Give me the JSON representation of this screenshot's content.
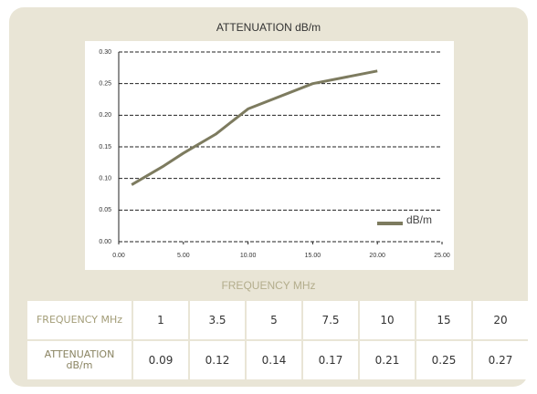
{
  "chart_data": {
    "type": "line",
    "title": "ATTENUATION dB/m",
    "x_label": "FREQUENCY MHz",
    "x": [
      1,
      3.5,
      5,
      7.5,
      10,
      15,
      20
    ],
    "series": [
      {
        "name": "dB/m",
        "color": "#7d7b5f",
        "values": [
          0.09,
          0.12,
          0.14,
          0.17,
          0.21,
          0.25,
          0.27
        ]
      }
    ],
    "xlim": [
      0,
      25
    ],
    "xticks": [
      {
        "value": 0,
        "label": "0.00"
      },
      {
        "value": 5,
        "label": "5.00"
      },
      {
        "value": 10,
        "label": "10.00"
      },
      {
        "value": 15,
        "label": "15.00"
      },
      {
        "value": 20,
        "label": "20.00"
      },
      {
        "value": 25,
        "label": "25.00"
      }
    ],
    "ylim": [
      0,
      0.3
    ],
    "yticks": [
      {
        "value": 0,
        "label": "0.00"
      },
      {
        "value": 0.05,
        "label": "0.05"
      },
      {
        "value": 0.1,
        "label": "0.10"
      },
      {
        "value": 0.15,
        "label": "0.15"
      },
      {
        "value": 0.2,
        "label": "0.20"
      },
      {
        "value": 0.25,
        "label": "0.25"
      },
      {
        "value": 0.3,
        "label": "0.30"
      }
    ],
    "grid": true,
    "legend": "lower right"
  },
  "table": {
    "rows": [
      [
        "FREQUENCY MHz",
        "1",
        "3.5",
        "5",
        "7.5",
        "10",
        "15",
        "20"
      ],
      [
        "ATTENUATION dB/m",
        "0.09",
        "0.12",
        "0.14",
        "0.17",
        "0.21",
        "0.25",
        "0.27"
      ]
    ]
  }
}
